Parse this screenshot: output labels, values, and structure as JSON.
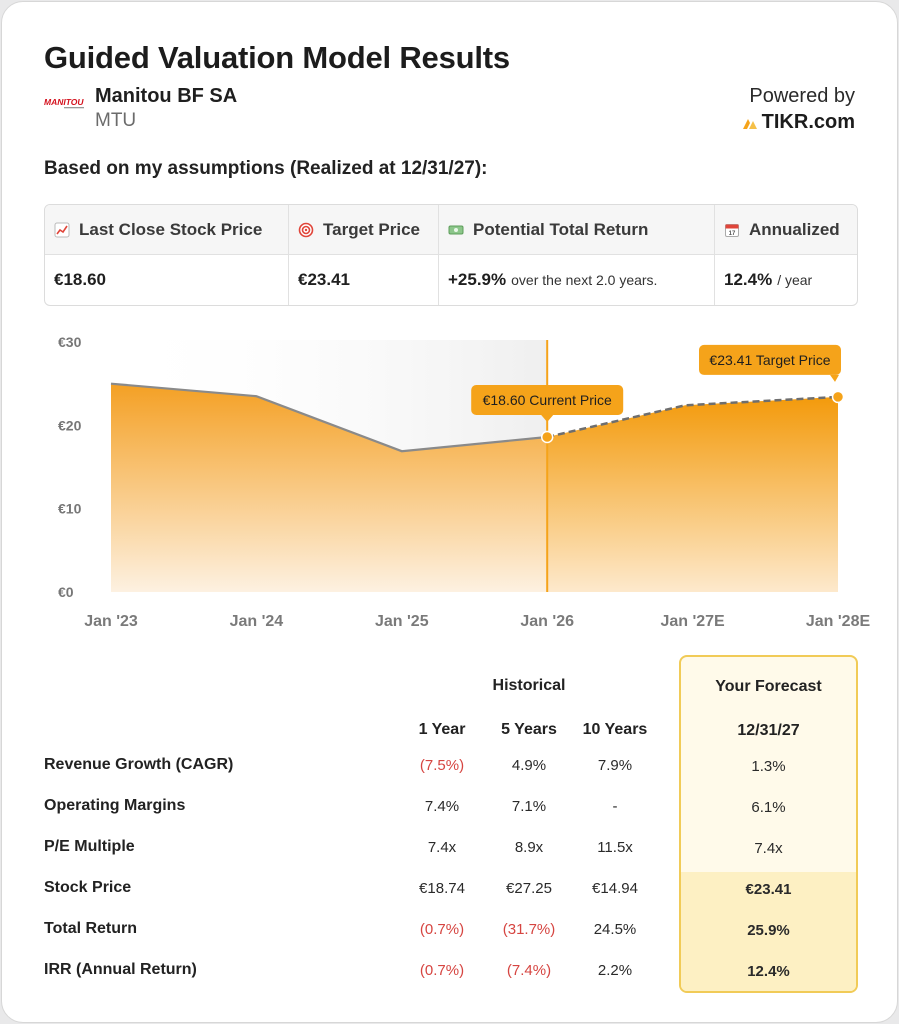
{
  "header": {
    "title": "Guided Valuation Model Results",
    "company_name": "Manitou BF SA",
    "ticker": "MTU",
    "powered_by": "Powered by",
    "brand": "TIKR.com",
    "logo_text": "MANITOU"
  },
  "assumptions_text": "Based on my assumptions (Realized at 12/31/27):",
  "summary": {
    "last_close": {
      "label": "Last Close Stock Price",
      "value": "€18.60",
      "icon": "chart-icon"
    },
    "target": {
      "label": "Target Price",
      "value": "€23.41",
      "icon": "target-icon"
    },
    "potential": {
      "label": "Potential Total Return",
      "value": "+25.9%",
      "suffix": "over the next 2.0 years.",
      "icon": "money-icon"
    },
    "annualized": {
      "label": "Annualized",
      "value": "12.4%",
      "suffix": "/ year",
      "icon": "calendar-icon"
    }
  },
  "chart_data": {
    "type": "area",
    "y_ticks": [
      "€30",
      "€20",
      "€10",
      "€0"
    ],
    "ylim": [
      0,
      30
    ],
    "x_ticks": [
      "Jan '23",
      "Jan '24",
      "Jan '25",
      "Jan '26",
      "Jan '27E",
      "Jan '28E"
    ],
    "series": [
      {
        "name": "Historical",
        "points": [
          [
            0,
            25.0
          ],
          [
            1,
            23.5
          ],
          [
            2,
            16.9
          ],
          [
            3,
            18.6
          ]
        ]
      },
      {
        "name": "Forecast",
        "points": [
          [
            3,
            18.6
          ],
          [
            3.95,
            22.4
          ],
          [
            5,
            23.41
          ]
        ]
      }
    ],
    "current_marker_x": 3,
    "annotations": {
      "current": "€18.60 Current Price",
      "target": "€23.41 Target Price"
    },
    "colors": {
      "accent": "#f5a31a",
      "historical_bg": "#f3f3f3",
      "dash": "#6e6e6e"
    }
  },
  "table": {
    "historical_header": "Historical",
    "forecast_header": "Your Forecast",
    "columns": [
      "1 Year",
      "5 Years",
      "10 Years"
    ],
    "forecast_column": "12/31/27",
    "rows": [
      {
        "label": "Revenue Growth (CAGR)",
        "values": [
          "(7.5%)",
          "4.9%",
          "7.9%"
        ],
        "forecast": "1.3%"
      },
      {
        "label": "Operating Margins",
        "values": [
          "7.4%",
          "7.1%",
          "-"
        ],
        "forecast": "6.1%"
      },
      {
        "label": "P/E Multiple",
        "values": [
          "7.4x",
          "8.9x",
          "11.5x"
        ],
        "forecast": "7.4x"
      },
      {
        "label": "Stock Price",
        "values": [
          "€18.74",
          "€27.25",
          "€14.94"
        ],
        "forecast": "€23.41"
      },
      {
        "label": "Total Return",
        "values": [
          "(0.7%)",
          "(31.7%)",
          "24.5%"
        ],
        "forecast": "25.9%"
      },
      {
        "label": "IRR (Annual Return)",
        "values": [
          "(0.7%)",
          "(7.4%)",
          "2.2%"
        ],
        "forecast": "12.4%"
      }
    ],
    "negative_color": "#d64541"
  }
}
